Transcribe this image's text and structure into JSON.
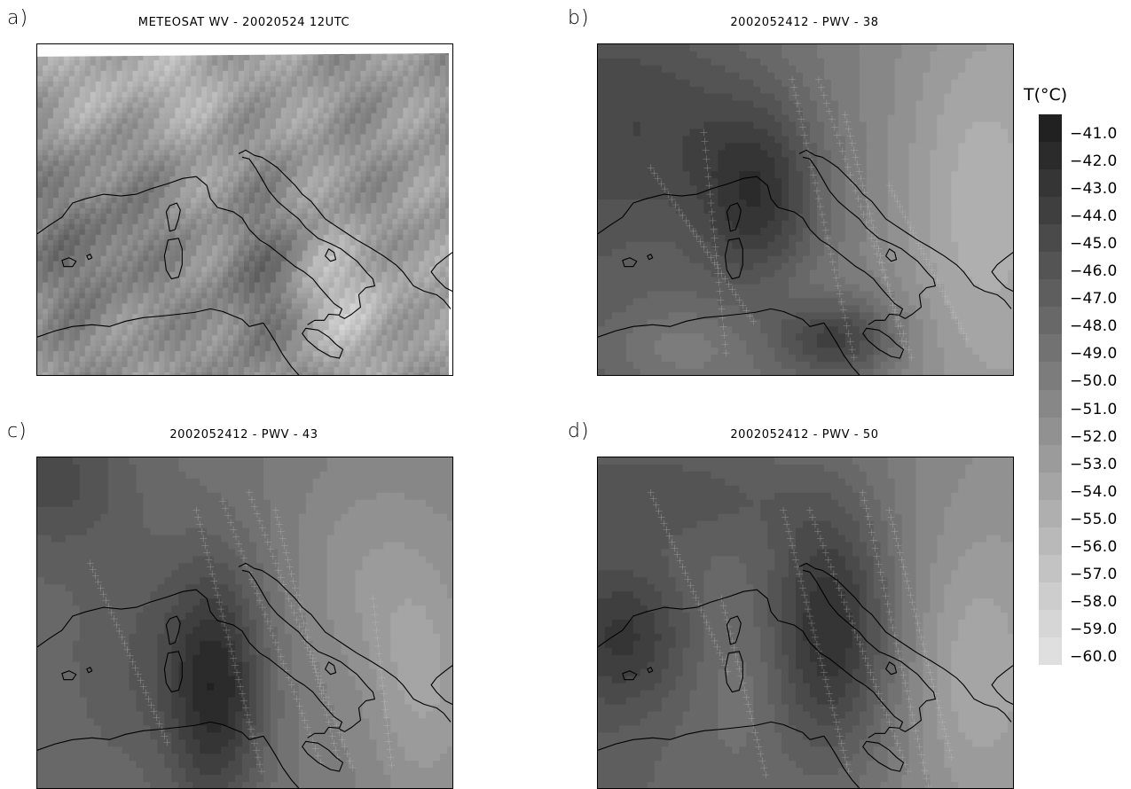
{
  "panels": [
    {
      "id": "a",
      "letter": "a)",
      "title": "METEOSAT WV - 20020524 12UTC",
      "kind": "satellite"
    },
    {
      "id": "b",
      "letter": "b)",
      "title": "2002052412 - PWV - 38",
      "kind": "model"
    },
    {
      "id": "c",
      "letter": "c)",
      "title": "2002052412 - PWV - 43",
      "kind": "model"
    },
    {
      "id": "d",
      "letter": "d)",
      "title": "2002052412 - PWV - 50",
      "kind": "model"
    }
  ],
  "legend": {
    "title": "T(°C)",
    "labels": [
      "-41.0",
      "-42.0",
      "-43.0",
      "-44.0",
      "-45.0",
      "-46.0",
      "-47.0",
      "-48.0",
      "-49.0",
      "-50.0",
      "-51.0",
      "-52.0",
      "-53.0",
      "-54.0",
      "-55.0",
      "-56.0",
      "-57.0",
      "-58.0",
      "-59.0",
      "-60.0"
    ],
    "colors": [
      "#212121",
      "#2b2b2b",
      "#353535",
      "#3f3f3f",
      "#4a4a4a",
      "#545454",
      "#5e5e5e",
      "#686868",
      "#727272",
      "#7c7c7c",
      "#878787",
      "#919191",
      "#9b9b9b",
      "#a5a5a5",
      "#afafaf",
      "#b9b9b9",
      "#c3c3c3",
      "#cdcdcd",
      "#d6d6d6",
      "#dfdfdf"
    ]
  },
  "colors": {
    "coast": "#000000",
    "grid_ticks": "#c8c8c8",
    "frame": "#000000"
  }
}
